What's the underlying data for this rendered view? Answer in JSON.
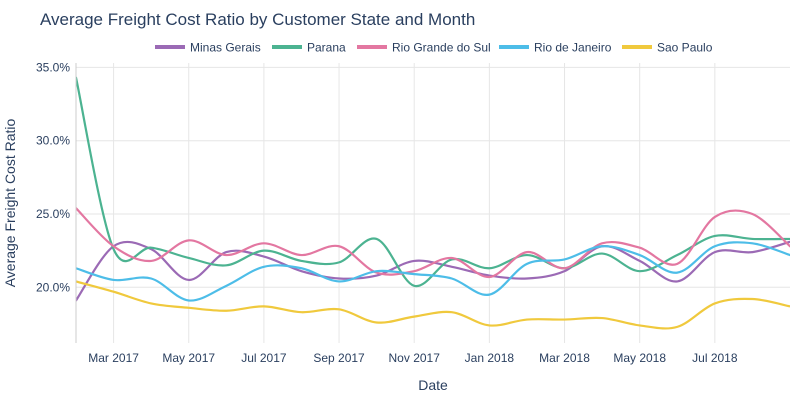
{
  "chart_data": {
    "type": "line",
    "title": "Average Freight Cost Ratio by Customer State and Month",
    "xlabel": "Date",
    "ylabel": "Average Freight Cost Ratio",
    "x_tick_labels": [
      "Mar 2017",
      "May 2017",
      "Jul 2017",
      "Sep 2017",
      "Nov 2017",
      "Jan 2018",
      "Mar 2018",
      "May 2018",
      "Jul 2018"
    ],
    "y_tick_labels": [
      "20.0%",
      "25.0%",
      "30.0%",
      "35.0%"
    ],
    "y_ticks": [
      20,
      25,
      30,
      35
    ],
    "ylim": [
      16.2,
      35.3
    ],
    "xlim": [
      0,
      19
    ],
    "x_tick_positions": [
      1,
      3,
      5,
      7,
      9,
      11,
      13,
      15,
      17
    ],
    "x": [
      "2017-02",
      "2017-03",
      "2017-04",
      "2017-05",
      "2017-06",
      "2017-07",
      "2017-08",
      "2017-09",
      "2017-10",
      "2017-11",
      "2017-12",
      "2018-01",
      "2018-02",
      "2018-03",
      "2018-04",
      "2018-05",
      "2018-06",
      "2018-07",
      "2018-08",
      "2018-09"
    ],
    "legend_position": "top",
    "series": [
      {
        "name": "Minas Gerais",
        "color": "#9b6ab5",
        "values": [
          19.1,
          22.8,
          22.6,
          20.5,
          22.4,
          22.1,
          21.1,
          20.6,
          20.8,
          21.8,
          21.4,
          20.8,
          20.6,
          21.1,
          22.8,
          21.8,
          20.4,
          22.4,
          22.4,
          23.1
        ]
      },
      {
        "name": "Parana",
        "color": "#4cb391",
        "values": [
          34.3,
          22.6,
          22.7,
          22.0,
          21.5,
          22.5,
          21.8,
          21.7,
          23.3,
          20.1,
          21.9,
          21.3,
          22.2,
          21.3,
          22.3,
          21.1,
          22.2,
          23.5,
          23.3,
          23.3
        ]
      },
      {
        "name": "Rio Grande do Sul",
        "color": "#e377a1",
        "values": [
          25.4,
          22.8,
          21.8,
          23.2,
          22.2,
          23.0,
          22.2,
          22.8,
          21.0,
          21.1,
          22.0,
          20.7,
          22.4,
          21.3,
          23.0,
          22.7,
          21.6,
          24.8,
          25.0,
          22.8
        ]
      },
      {
        "name": "Rio de Janeiro",
        "color": "#4dbde8",
        "values": [
          21.3,
          20.5,
          20.6,
          19.1,
          20.1,
          21.4,
          21.3,
          20.4,
          21.1,
          20.9,
          20.6,
          19.5,
          21.6,
          21.9,
          22.8,
          22.2,
          21.0,
          22.8,
          23.0,
          22.2
        ]
      },
      {
        "name": "Sao Paulo",
        "color": "#f0c93d",
        "values": [
          20.4,
          19.7,
          18.9,
          18.6,
          18.4,
          18.7,
          18.3,
          18.5,
          17.6,
          18.0,
          18.3,
          17.4,
          17.8,
          17.8,
          17.9,
          17.4,
          17.3,
          18.9,
          19.2,
          18.7
        ]
      }
    ]
  }
}
